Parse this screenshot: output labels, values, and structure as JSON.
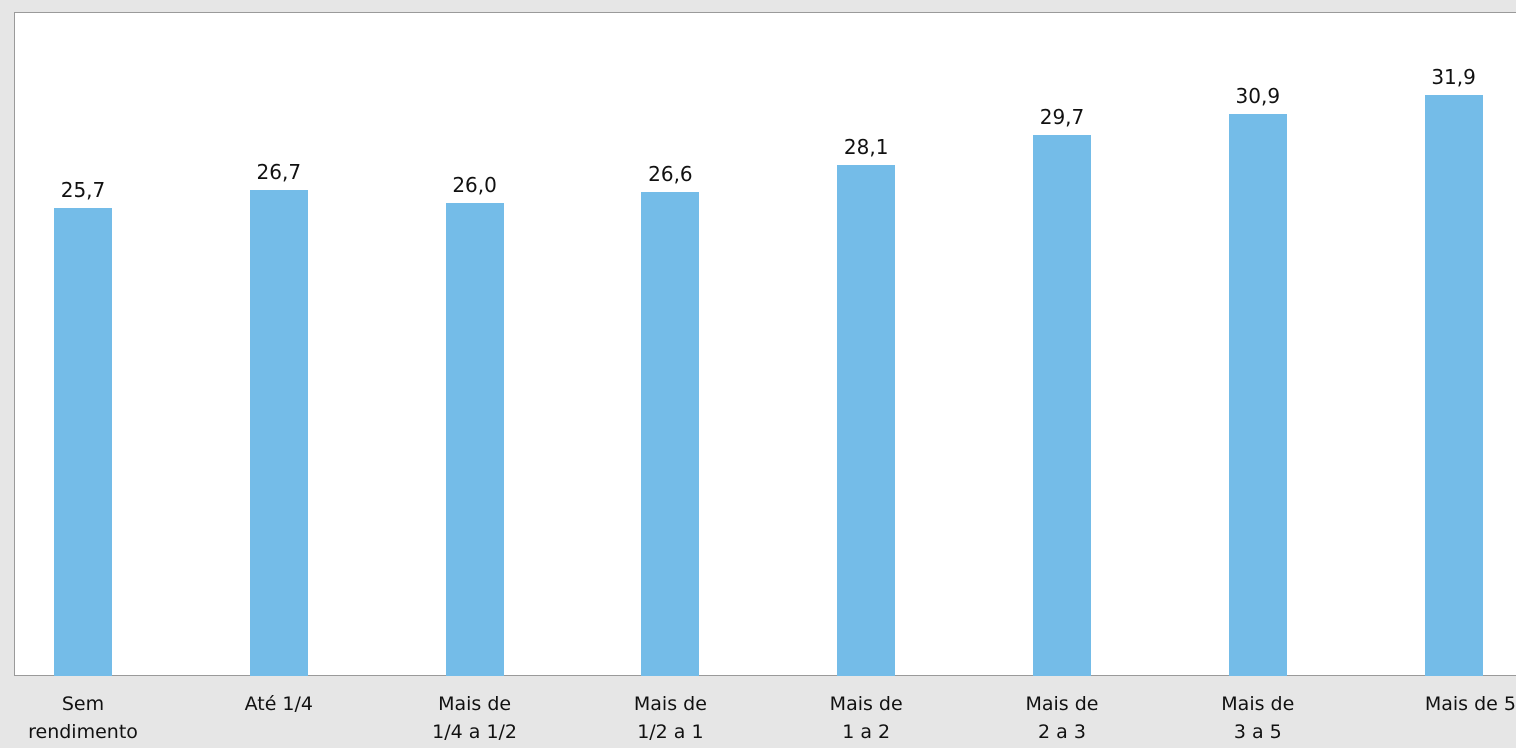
{
  "chart_data": {
    "type": "bar",
    "categories": [
      "Sem\nrendimento",
      "Até 1/4",
      "Mais de\n1/4 a 1/2",
      "Mais de\n1/2 a 1",
      "Mais de\n1 a 2",
      "Mais de\n2 a 3",
      "Mais de\n3 a 5",
      "Mais de 5"
    ],
    "values": [
      25.7,
      26.7,
      26.0,
      26.6,
      28.1,
      29.7,
      30.9,
      31.9
    ],
    "value_labels": [
      "25,7",
      "26,7",
      "26,0",
      "26,6",
      "28,1",
      "29,7",
      "30,9",
      "31,9"
    ],
    "color": "#74bce8"
  }
}
